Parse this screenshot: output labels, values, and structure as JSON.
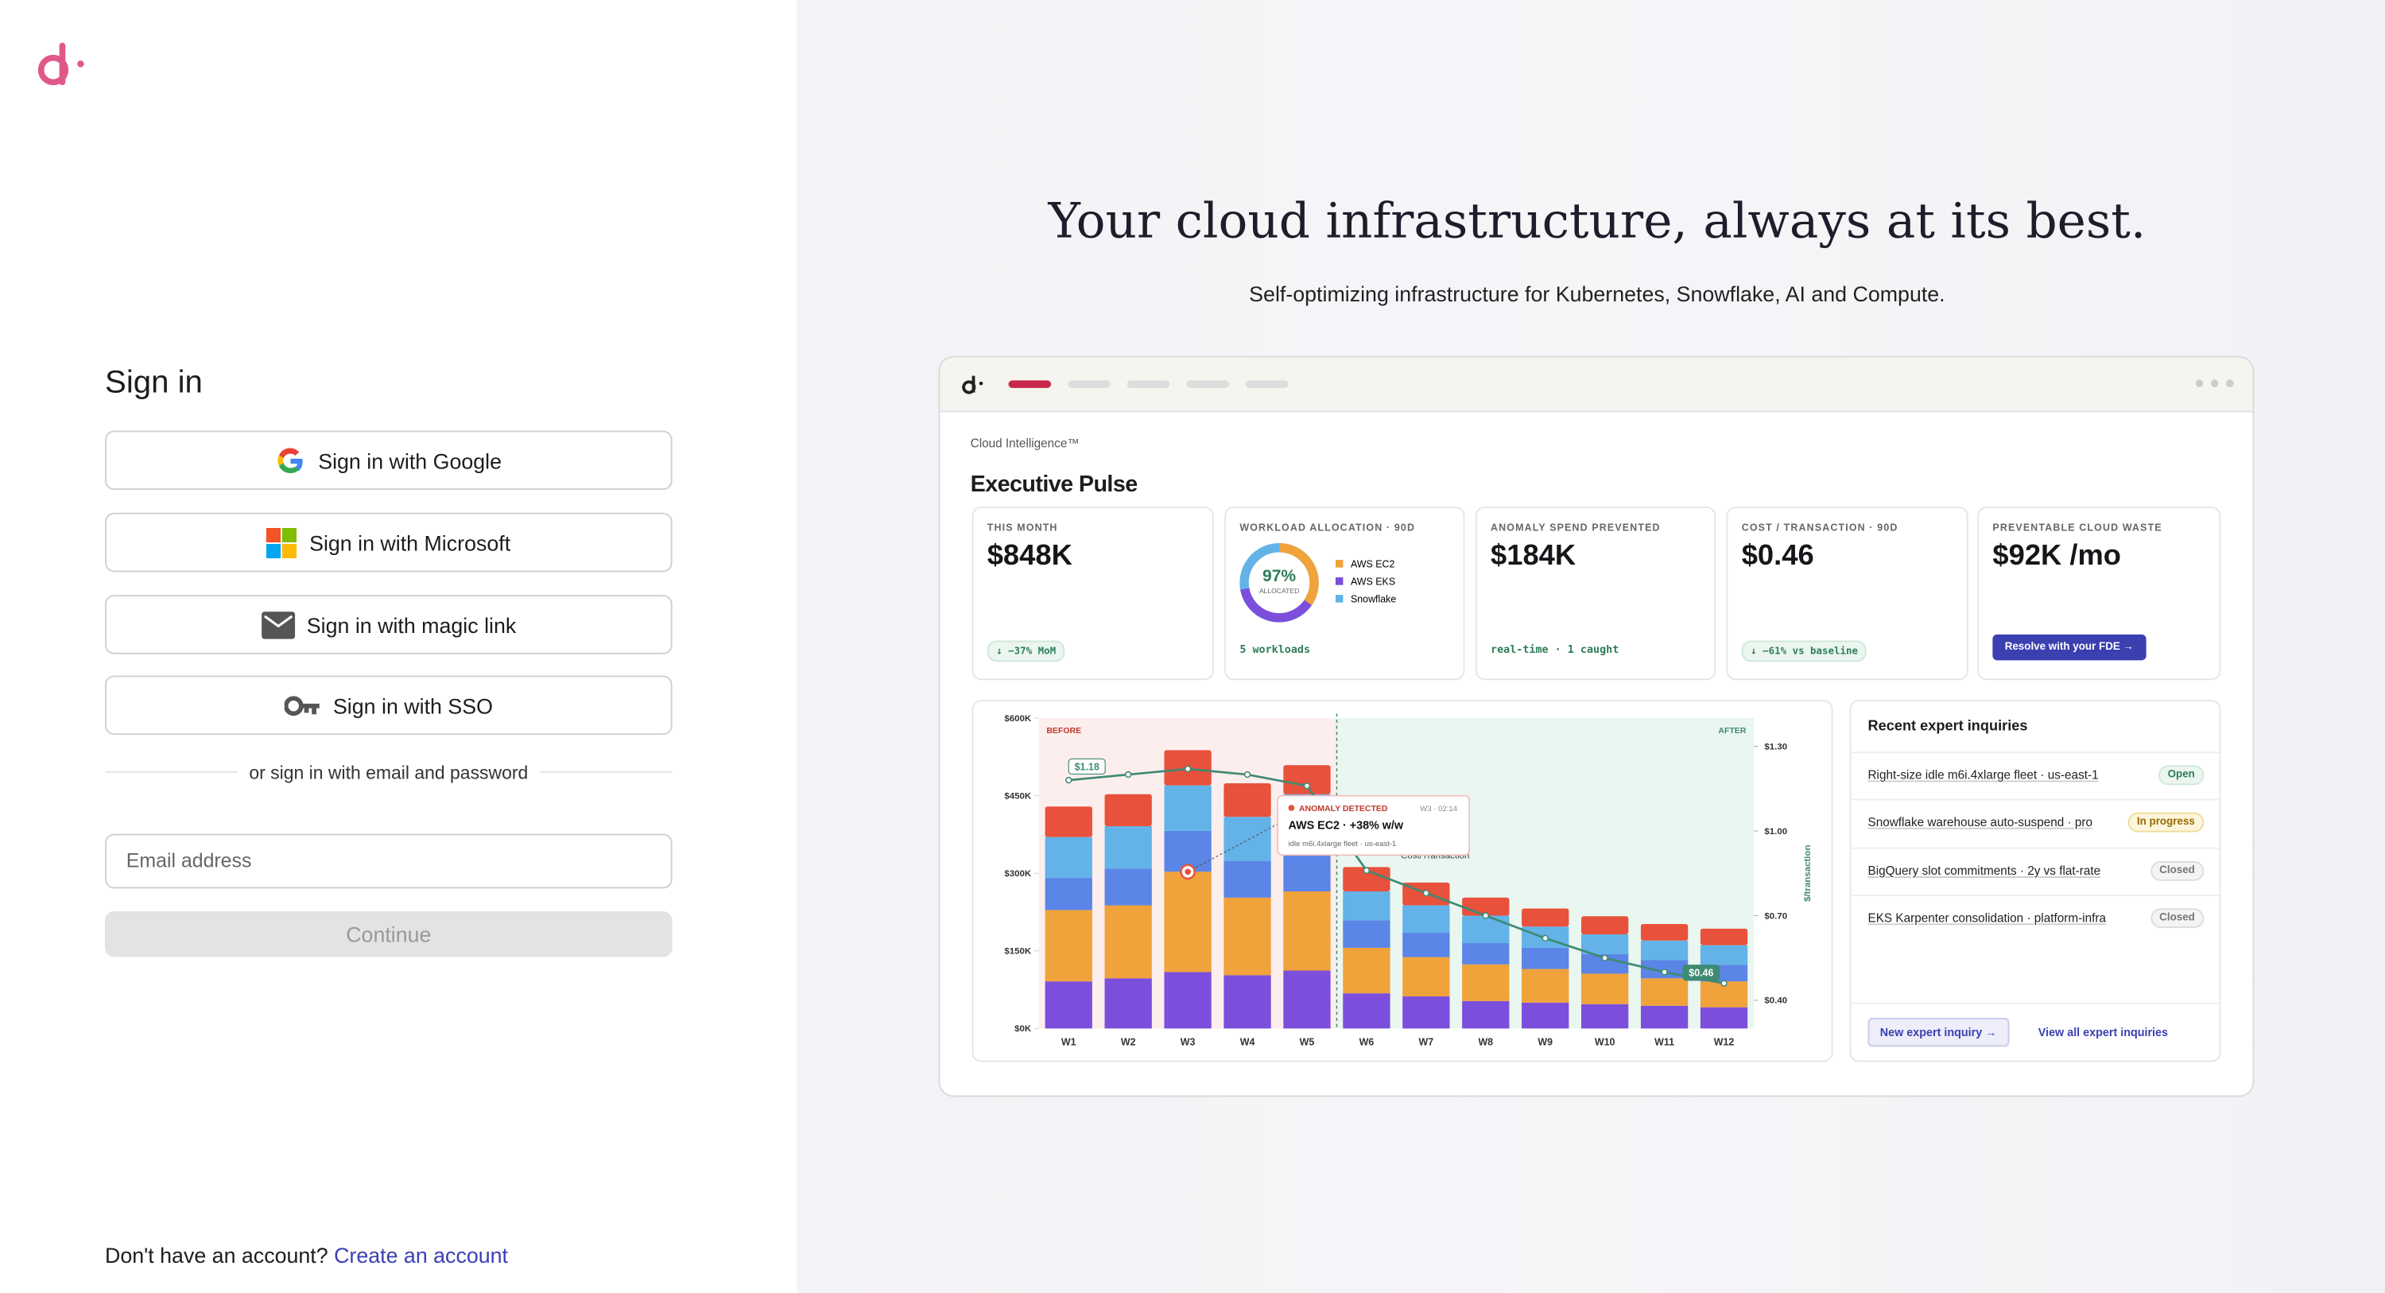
{
  "signin": {
    "title": "Sign in",
    "buttons": [
      "Sign in with Google",
      "Sign in with Microsoft",
      "Sign in with magic link",
      "Sign in with SSO"
    ],
    "divider": "or sign in with email and password",
    "email_placeholder": "Email address",
    "continue": "Continue",
    "footer_text": "Don't have an account?",
    "footer_link": "Create an account"
  },
  "hero": {
    "title": "Your cloud infrastructure, always at its best.",
    "subtitle": "Self-optimizing infrastructure for Kubernetes, Snowflake, AI and Compute."
  },
  "dashboard": {
    "eyebrow": "Cloud Intelligence™",
    "title": "Executive Pulse",
    "cards": [
      {
        "label": "THIS MONTH",
        "value": "$848K",
        "note": "↓ −37% MoM"
      },
      {
        "label": "WORKLOAD ALLOCATION · 90D",
        "value": "97%",
        "caption": "ALLOCATED",
        "legend": [
          "AWS EC2",
          "AWS EKS",
          "Snowflake"
        ],
        "note": "5 workloads"
      },
      {
        "label": "ANOMALY SPEND PREVENTED",
        "value": "$184K",
        "note": "real-time · 1 caught"
      },
      {
        "label": "COST / TRANSACTION · 90D",
        "value": "$0.46",
        "note": "↓ −61% vs baseline"
      },
      {
        "label": "PREVENTABLE CLOUD WASTE",
        "value": "$92K /mo",
        "button": "Resolve with your FDE →"
      }
    ],
    "chart": {
      "type": "bar",
      "stacked": true,
      "categories": [
        "W1",
        "W2",
        "W3",
        "W4",
        "W5",
        "W6",
        "W7",
        "W8",
        "W9",
        "W10",
        "W11",
        "W12"
      ],
      "series": [
        {
          "color": "#7b4fdc",
          "values": [
            91,
            97,
            109,
            103,
            112,
            68,
            62,
            53,
            50,
            47,
            44,
            41
          ]
        },
        {
          "color": "#f0a23b",
          "values": [
            138,
            141,
            194,
            150,
            153,
            88,
            76,
            71,
            65,
            59,
            53,
            50
          ]
        },
        {
          "color": "#5b85e6",
          "values": [
            62,
            71,
            79,
            71,
            76,
            53,
            47,
            41,
            41,
            38,
            35,
            32
          ]
        },
        {
          "color": "#63b3e8",
          "values": [
            79,
            82,
            88,
            85,
            112,
            56,
            53,
            53,
            41,
            38,
            38,
            38
          ]
        },
        {
          "color": "#e8513b",
          "values": [
            59,
            62,
            68,
            65,
            56,
            47,
            44,
            35,
            35,
            35,
            32,
            32
          ]
        },
        {
          "type": "line",
          "axis": "y2",
          "color": "#3e8a72",
          "values": [
            1.18,
            1.2,
            1.22,
            1.2,
            1.16,
            0.86,
            0.78,
            0.7,
            0.62,
            0.55,
            0.5,
            0.46
          ],
          "value_labels": [
            "$1.18",
            null,
            null,
            null,
            null,
            null,
            null,
            null,
            null,
            null,
            null,
            "$0.46"
          ]
        }
      ],
      "ylim": [
        0,
        600
      ],
      "yticks": [
        {
          "value": 0,
          "label": "$0K"
        },
        {
          "value": 150,
          "label": "$150K"
        },
        {
          "value": 300,
          "label": "$300K"
        },
        {
          "value": 450,
          "label": "$450K"
        },
        {
          "value": 600,
          "label": "$600K"
        }
      ],
      "y2lim": [
        0.3,
        1.4
      ],
      "y2ticks": [
        {
          "value": 0.4,
          "label": "$0.40"
        },
        {
          "value": 0.7,
          "label": "$0.70"
        },
        {
          "value": 1,
          "label": "$1.00"
        },
        {
          "value": 1.3,
          "label": "$1.30"
        }
      ],
      "y2label": "$/transaction",
      "regions": [
        "BEFORE",
        "AFTER"
      ],
      "line_label": "Cost/Transaction",
      "annotation": {
        "title": "ANOMALY DETECTED",
        "time": "W3 · 02:14",
        "headline": "AWS EC2 · +38% w/w",
        "detail": "idle m6i.4xlarge fleet · us-east-1"
      }
    },
    "inquiries": {
      "title": "Recent expert inquiries",
      "rows": [
        {
          "text": "Right-size idle m6i.4xlarge fleet · us-east-1",
          "status": "Open"
        },
        {
          "text": "Snowflake warehouse auto-suspend · pro",
          "status": "In progress"
        },
        {
          "text": "BigQuery slot commitments · 2y vs flat-rate",
          "status": "Closed"
        },
        {
          "text": "EKS Karpenter consolidation · platform-infra",
          "status": "Closed"
        }
      ],
      "new_button": "New expert inquiry →",
      "view_all": "View all expert inquiries"
    }
  }
}
